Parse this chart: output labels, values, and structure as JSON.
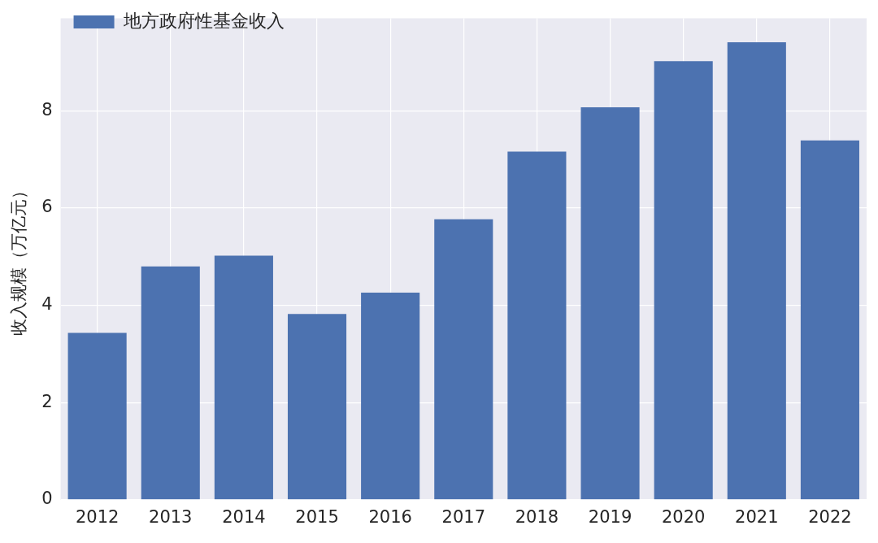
{
  "chart_data": {
    "type": "bar",
    "ylabel": "收入规模（万亿元）",
    "categories": [
      "2012",
      "2013",
      "2014",
      "2015",
      "2016",
      "2017",
      "2018",
      "2019",
      "2020",
      "2021",
      "2022"
    ],
    "series": [
      {
        "name": "地方政府性基金收入",
        "color": "#4c72b0",
        "values": [
          3.43,
          4.8,
          5.02,
          3.82,
          4.26,
          5.77,
          7.16,
          8.07,
          9.02,
          9.41,
          7.39
        ]
      }
    ],
    "ylim": [
      0,
      9.9
    ],
    "yticks": [
      0,
      2,
      4,
      6,
      8
    ],
    "grid": true,
    "legend": "top left"
  }
}
